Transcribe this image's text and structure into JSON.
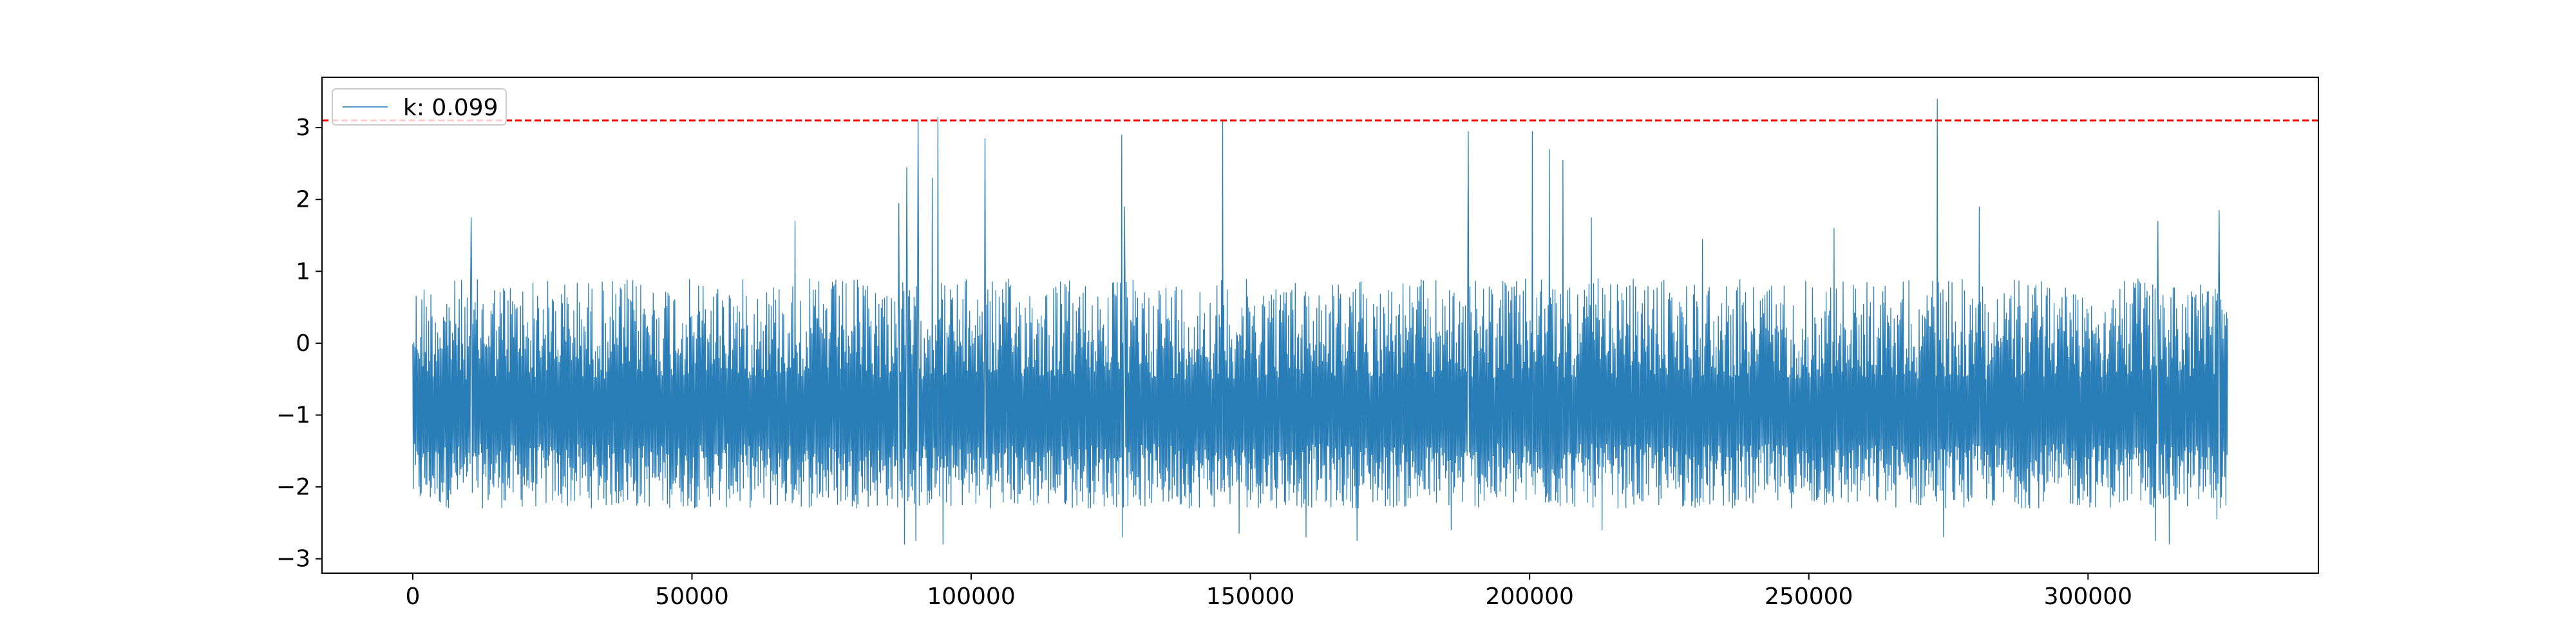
{
  "chart_data": {
    "type": "line",
    "title": "",
    "xlabel": "",
    "ylabel": "",
    "xlim": [
      -16250,
      341250
    ],
    "ylim": [
      -3.2,
      3.7
    ],
    "grid": false,
    "legend_position": "top-left",
    "x_ticks": [
      0,
      50000,
      100000,
      150000,
      200000,
      250000,
      300000
    ],
    "x_tick_labels": [
      "0",
      "50000",
      "100000",
      "150000",
      "200000",
      "250000",
      "300000"
    ],
    "y_ticks": [
      -3,
      -2,
      -1,
      0,
      1,
      2,
      3
    ],
    "y_tick_labels": [
      "−3",
      "−2",
      "−1",
      "0",
      "1",
      "2",
      "3"
    ],
    "series": [
      {
        "name": "k: 0.099",
        "color": "#1f77b4",
        "x_range": [
          0,
          325000
        ],
        "typical_range": [
          -2.3,
          0.9
        ],
        "peaks": [
          {
            "x": 10500,
            "y": 1.75
          },
          {
            "x": 68500,
            "y": 1.7
          },
          {
            "x": 87000,
            "y": 1.95
          },
          {
            "x": 88500,
            "y": 2.45
          },
          {
            "x": 90500,
            "y": 3.1
          },
          {
            "x": 93000,
            "y": 2.3
          },
          {
            "x": 94000,
            "y": 3.15
          },
          {
            "x": 102500,
            "y": 2.85
          },
          {
            "x": 127000,
            "y": 2.9
          },
          {
            "x": 127500,
            "y": 1.9
          },
          {
            "x": 145000,
            "y": 3.1
          },
          {
            "x": 189000,
            "y": 2.95
          },
          {
            "x": 200500,
            "y": 2.95
          },
          {
            "x": 203500,
            "y": 2.7
          },
          {
            "x": 206000,
            "y": 2.55
          },
          {
            "x": 211000,
            "y": 1.75
          },
          {
            "x": 231000,
            "y": 1.45
          },
          {
            "x": 254500,
            "y": 1.6
          },
          {
            "x": 273000,
            "y": 3.4
          },
          {
            "x": 280500,
            "y": 1.9
          },
          {
            "x": 312500,
            "y": 1.7
          },
          {
            "x": 323500,
            "y": 1.85
          }
        ],
        "troughs": [
          {
            "x": 88000,
            "y": -2.8
          },
          {
            "x": 90000,
            "y": -2.75
          },
          {
            "x": 95000,
            "y": -2.8
          },
          {
            "x": 127000,
            "y": -2.7
          },
          {
            "x": 148000,
            "y": -2.65
          },
          {
            "x": 160000,
            "y": -2.7
          },
          {
            "x": 169000,
            "y": -2.75
          },
          {
            "x": 186000,
            "y": -2.6
          },
          {
            "x": 213000,
            "y": -2.6
          },
          {
            "x": 274000,
            "y": -2.7
          },
          {
            "x": 312000,
            "y": -2.75
          },
          {
            "x": 314500,
            "y": -2.8
          },
          {
            "x": 323000,
            "y": -2.45
          }
        ]
      }
    ],
    "reference_line": {
      "y": 3.1,
      "color": "#ff0000",
      "style": "dashed"
    }
  }
}
